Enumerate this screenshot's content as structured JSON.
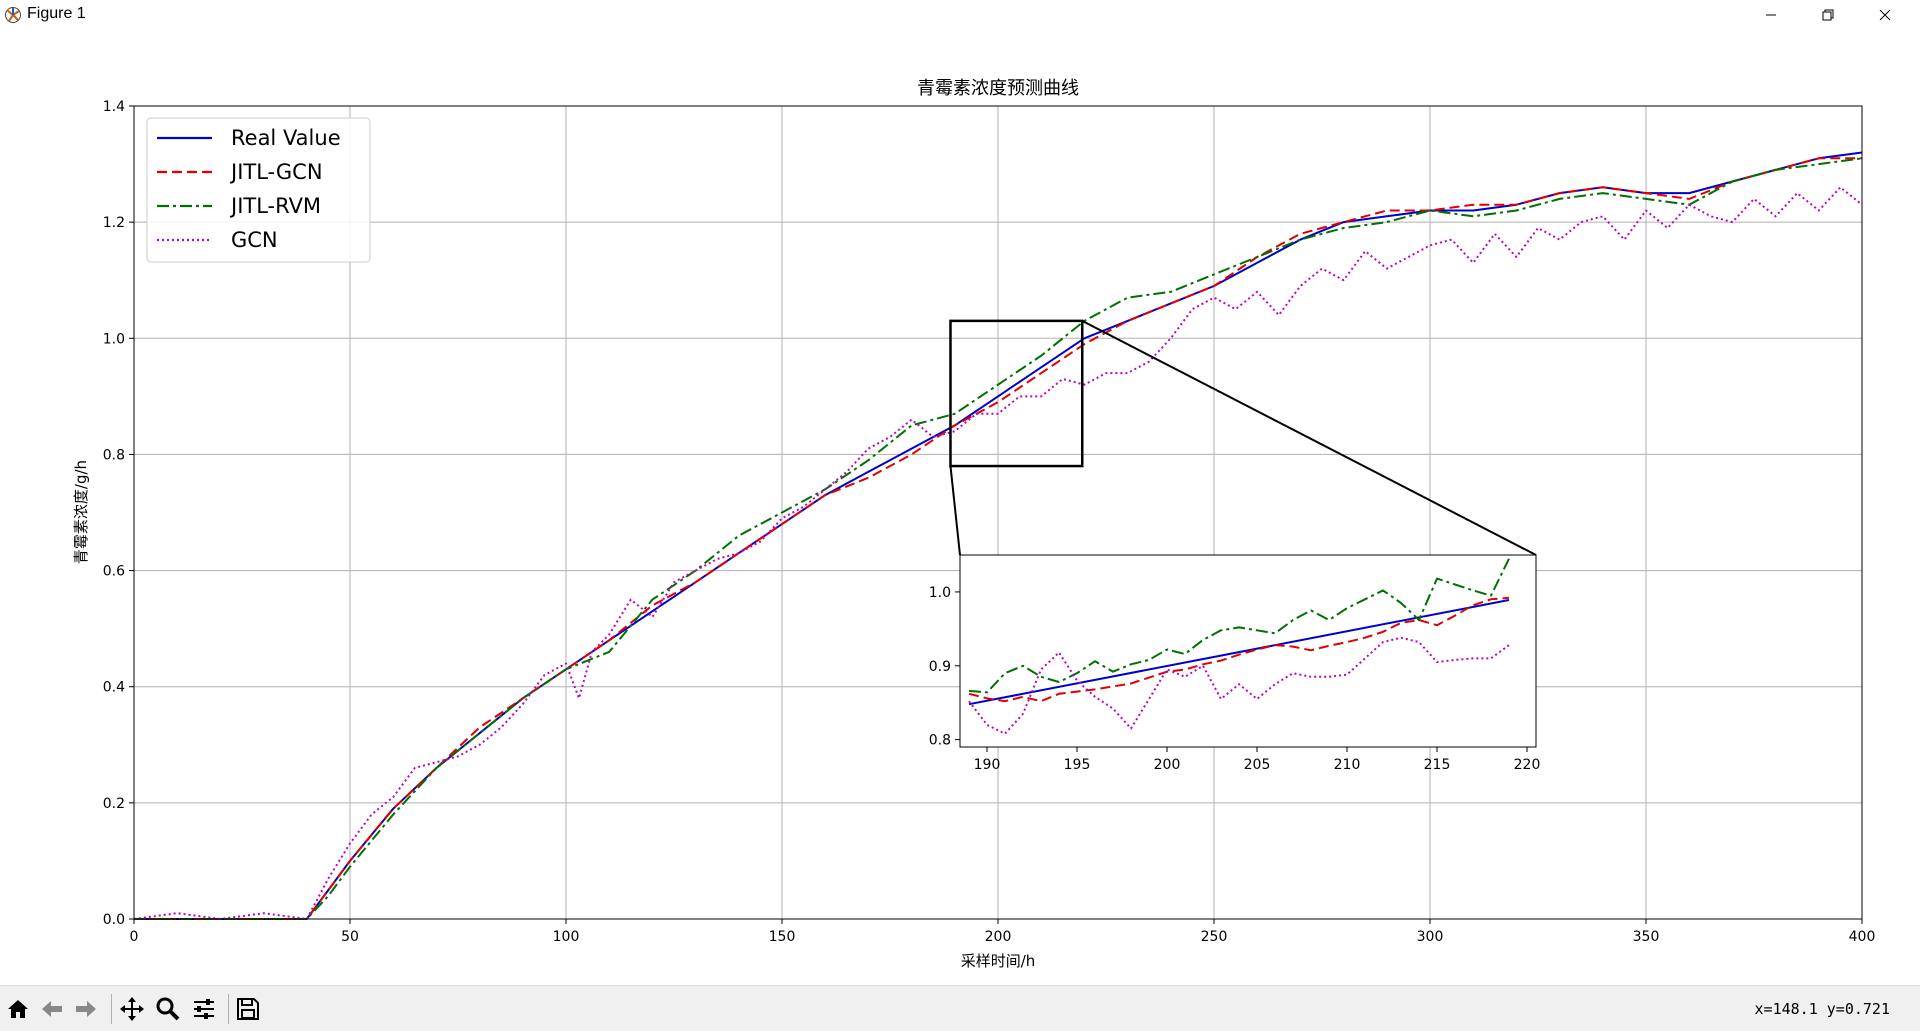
{
  "window": {
    "title": "Figure 1"
  },
  "colors": {
    "real": "#0000cc",
    "jitl_gcn": "#e00000",
    "jitl_rvm": "#007000",
    "gcn": "#c000c0",
    "grid": "#b0b0b0"
  },
  "icons": {
    "app": "matplotlib-icon",
    "minimize": "minimize-icon",
    "maximize": "maximize-icon",
    "close": "close-icon",
    "home": "home-icon",
    "back": "back-arrow-icon",
    "forward": "forward-arrow-icon",
    "pan": "pan-icon",
    "zoom": "zoom-icon",
    "configure": "configure-icon",
    "save": "save-icon"
  },
  "toolbar": {
    "coords": "x=148.1  y=0.721"
  },
  "chart_data": [
    {
      "type": "line",
      "title": "青霉素浓度预测曲线",
      "xlabel": "采样时间/h",
      "ylabel": "青霉素浓度/g/h",
      "xlim": [
        0,
        400
      ],
      "ylim": [
        0,
        1.4
      ],
      "xticks": [
        "0",
        "50",
        "100",
        "150",
        "200",
        "250",
        "300",
        "350",
        "400"
      ],
      "yticks": [
        "0.0",
        "0.2",
        "0.4",
        "0.6",
        "0.8",
        "1.0",
        "1.2",
        "1.4"
      ],
      "grid": true,
      "legend_position": "top-left",
      "series": [
        {
          "name": "Real Value",
          "style": "solid",
          "x": [
            0,
            40,
            45,
            50,
            60,
            70,
            80,
            90,
            100,
            110,
            120,
            130,
            140,
            150,
            160,
            170,
            180,
            190,
            200,
            210,
            220,
            230,
            240,
            250,
            260,
            270,
            280,
            290,
            300,
            310,
            320,
            330,
            340,
            350,
            360,
            370,
            380,
            390,
            400
          ],
          "y": [
            0,
            0,
            0.05,
            0.1,
            0.19,
            0.26,
            0.32,
            0.38,
            0.43,
            0.48,
            0.53,
            0.58,
            0.63,
            0.68,
            0.73,
            0.77,
            0.81,
            0.85,
            0.9,
            0.95,
            1.0,
            1.03,
            1.06,
            1.09,
            1.13,
            1.17,
            1.2,
            1.21,
            1.22,
            1.22,
            1.23,
            1.25,
            1.26,
            1.25,
            1.25,
            1.27,
            1.29,
            1.31,
            1.32
          ]
        },
        {
          "name": "JITL-GCN",
          "style": "dashed",
          "x": [
            0,
            40,
            45,
            50,
            60,
            70,
            80,
            90,
            100,
            110,
            120,
            130,
            140,
            150,
            160,
            170,
            180,
            190,
            200,
            210,
            220,
            230,
            240,
            250,
            260,
            270,
            280,
            290,
            300,
            310,
            320,
            330,
            340,
            350,
            360,
            370,
            380,
            390,
            400
          ],
          "y": [
            0,
            0,
            0.05,
            0.1,
            0.19,
            0.26,
            0.33,
            0.38,
            0.43,
            0.48,
            0.54,
            0.58,
            0.63,
            0.68,
            0.73,
            0.76,
            0.8,
            0.85,
            0.89,
            0.94,
            0.99,
            1.03,
            1.06,
            1.09,
            1.14,
            1.18,
            1.2,
            1.22,
            1.22,
            1.23,
            1.23,
            1.25,
            1.26,
            1.25,
            1.24,
            1.27,
            1.29,
            1.31,
            1.31
          ]
        },
        {
          "name": "JITL-RVM",
          "style": "dashdot",
          "x": [
            0,
            40,
            45,
            50,
            60,
            70,
            80,
            90,
            100,
            110,
            120,
            130,
            140,
            150,
            160,
            170,
            180,
            190,
            200,
            210,
            220,
            230,
            240,
            250,
            260,
            270,
            280,
            290,
            300,
            310,
            320,
            330,
            340,
            350,
            360,
            370,
            380,
            390,
            400
          ],
          "y": [
            0,
            0,
            0.04,
            0.09,
            0.18,
            0.26,
            0.32,
            0.38,
            0.43,
            0.46,
            0.55,
            0.6,
            0.66,
            0.7,
            0.74,
            0.79,
            0.85,
            0.87,
            0.92,
            0.97,
            1.03,
            1.07,
            1.08,
            1.11,
            1.14,
            1.17,
            1.19,
            1.2,
            1.22,
            1.21,
            1.22,
            1.24,
            1.25,
            1.24,
            1.23,
            1.27,
            1.29,
            1.3,
            1.31
          ]
        },
        {
          "name": "GCN",
          "style": "dotted",
          "x": [
            0,
            10,
            20,
            30,
            40,
            45,
            50,
            55,
            60,
            65,
            70,
            75,
            80,
            85,
            90,
            95,
            100,
            103,
            106,
            110,
            115,
            120,
            125,
            130,
            135,
            140,
            145,
            150,
            155,
            160,
            165,
            170,
            175,
            180,
            185,
            190,
            195,
            200,
            205,
            210,
            215,
            220,
            225,
            230,
            235,
            240,
            245,
            250,
            255,
            260,
            265,
            270,
            275,
            280,
            285,
            290,
            295,
            300,
            305,
            310,
            315,
            320,
            325,
            330,
            335,
            340,
            345,
            350,
            355,
            360,
            365,
            370,
            375,
            380,
            385,
            390,
            395,
            400
          ],
          "y": [
            0,
            0.01,
            0,
            0.01,
            0,
            0.07,
            0.13,
            0.18,
            0.21,
            0.26,
            0.27,
            0.28,
            0.3,
            0.33,
            0.37,
            0.42,
            0.44,
            0.38,
            0.46,
            0.49,
            0.55,
            0.52,
            0.58,
            0.6,
            0.62,
            0.63,
            0.65,
            0.69,
            0.71,
            0.74,
            0.77,
            0.81,
            0.83,
            0.86,
            0.83,
            0.84,
            0.87,
            0.87,
            0.9,
            0.9,
            0.93,
            0.92,
            0.94,
            0.94,
            0.96,
            1.0,
            1.05,
            1.07,
            1.05,
            1.08,
            1.04,
            1.09,
            1.12,
            1.1,
            1.15,
            1.12,
            1.14,
            1.16,
            1.17,
            1.13,
            1.18,
            1.14,
            1.19,
            1.17,
            1.2,
            1.21,
            1.17,
            1.22,
            1.19,
            1.23,
            1.21,
            1.2,
            1.24,
            1.21,
            1.25,
            1.22,
            1.26,
            1.23
          ]
        }
      ]
    },
    {
      "type": "line",
      "xlim": [
        188.5,
        220.5
      ],
      "ylim": [
        0.79,
        1.05
      ],
      "xticks": [
        "190",
        "195",
        "200",
        "205",
        "210",
        "215",
        "220"
      ],
      "yticks": [
        "0.8",
        "0.9",
        "1.0"
      ],
      "zoom_region": {
        "x": [
          189,
          219.5
        ],
        "y": [
          0.78,
          1.03
        ]
      },
      "series": [
        {
          "name": "Real Value",
          "x": [
            189,
            219
          ],
          "y": [
            0.848,
            0.989
          ]
        },
        {
          "name": "JITL-GCN",
          "x": [
            189,
            190,
            191,
            192,
            193,
            194,
            195,
            196,
            197,
            198,
            199,
            200,
            201,
            202,
            203,
            204,
            205,
            206,
            207,
            208,
            209,
            210,
            211,
            212,
            213,
            214,
            215,
            216,
            217,
            218,
            219
          ],
          "y": [
            0.862,
            0.856,
            0.852,
            0.858,
            0.852,
            0.862,
            0.865,
            0.868,
            0.872,
            0.876,
            0.884,
            0.892,
            0.895,
            0.902,
            0.907,
            0.915,
            0.922,
            0.928,
            0.926,
            0.921,
            0.927,
            0.932,
            0.938,
            0.946,
            0.958,
            0.962,
            0.955,
            0.968,
            0.982,
            0.99,
            0.992
          ]
        },
        {
          "name": "JITL-RVM",
          "x": [
            189,
            190,
            191,
            192,
            193,
            194,
            195,
            196,
            197,
            198,
            199,
            200,
            201,
            202,
            203,
            204,
            205,
            206,
            207,
            208,
            209,
            210,
            211,
            212,
            213,
            214,
            215,
            216,
            217,
            218,
            219
          ],
          "y": [
            0.866,
            0.864,
            0.89,
            0.9,
            0.885,
            0.878,
            0.89,
            0.906,
            0.892,
            0.902,
            0.908,
            0.922,
            0.916,
            0.935,
            0.948,
            0.952,
            0.948,
            0.944,
            0.962,
            0.975,
            0.962,
            0.978,
            0.99,
            1.002,
            0.985,
            0.962,
            1.018,
            1.01,
            1.002,
            0.995,
            1.045
          ]
        },
        {
          "name": "GCN",
          "x": [
            189,
            190,
            191,
            192,
            193,
            194,
            195,
            196,
            197,
            198,
            199,
            200,
            201,
            202,
            203,
            204,
            205,
            206,
            207,
            208,
            209,
            210,
            211,
            212,
            213,
            214,
            215,
            216,
            217,
            218,
            219
          ],
          "y": [
            0.852,
            0.82,
            0.808,
            0.835,
            0.895,
            0.918,
            0.88,
            0.858,
            0.842,
            0.815,
            0.855,
            0.895,
            0.885,
            0.9,
            0.855,
            0.875,
            0.855,
            0.875,
            0.89,
            0.885,
            0.885,
            0.888,
            0.91,
            0.932,
            0.938,
            0.932,
            0.905,
            0.908,
            0.91,
            0.91,
            0.928
          ]
        }
      ]
    }
  ]
}
